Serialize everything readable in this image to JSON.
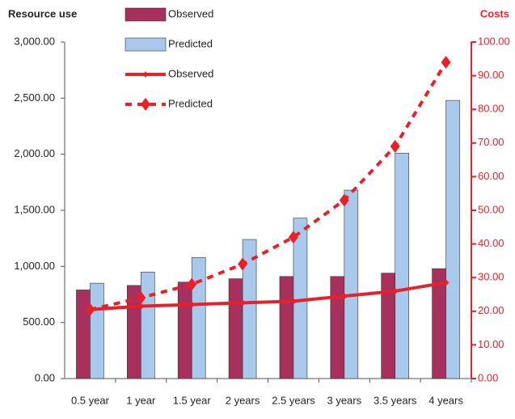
{
  "chart_data": {
    "type": "bar-line",
    "ylabel": "Resource use",
    "y2label": "Costs",
    "categories": [
      "0.5 year",
      "1 year",
      "1.5 year",
      "2 years",
      "2.5 years",
      "3 years",
      "3.5 years",
      "4 years"
    ],
    "series": [
      {
        "name": "Observed",
        "type": "bar",
        "axis": "y",
        "color": "#a8305c",
        "values": [
          790,
          830,
          860,
          890,
          910,
          910,
          940,
          980
        ]
      },
      {
        "name": "Predicted",
        "type": "bar",
        "axis": "y",
        "color": "#a9c9ec",
        "values": [
          850,
          950,
          1080,
          1240,
          1430,
          1680,
          2010,
          2480
        ]
      },
      {
        "name": "Observed",
        "type": "line",
        "axis": "y2",
        "color": "#e8202a",
        "style": "solid",
        "marker": "cross",
        "values": [
          20.5,
          21.5,
          22,
          22.5,
          23,
          24.5,
          26,
          28.5
        ]
      },
      {
        "name": "Predicted",
        "type": "line",
        "axis": "y2",
        "color": "#e8202a",
        "style": "dashed",
        "marker": "diamond",
        "values": [
          20.5,
          24,
          28,
          34,
          42,
          53,
          69,
          94
        ]
      }
    ],
    "ylim": [
      0,
      3000
    ],
    "yticks": [
      {
        "value": 0,
        "label": "0.00"
      },
      {
        "value": 500,
        "label": "500.00"
      },
      {
        "value": 1000,
        "label": "1,000.00"
      },
      {
        "value": 1500,
        "label": "1,500.00"
      },
      {
        "value": 2000,
        "label": "2,000.00"
      },
      {
        "value": 2500,
        "label": "2,500.00"
      },
      {
        "value": 3000,
        "label": "3,000.00"
      }
    ],
    "y2lim": [
      0,
      100
    ],
    "y2ticks": [
      {
        "value": 0,
        "label": "0.00"
      },
      {
        "value": 10,
        "label": "10.00"
      },
      {
        "value": 20,
        "label": "20.00"
      },
      {
        "value": 30,
        "label": "30.00"
      },
      {
        "value": 40,
        "label": "40.00"
      },
      {
        "value": 50,
        "label": "50.00"
      },
      {
        "value": 60,
        "label": "60.00"
      },
      {
        "value": 70,
        "label": "70.00"
      },
      {
        "value": 80,
        "label": "80.00"
      },
      {
        "value": 90,
        "label": "90.00"
      },
      {
        "value": 100,
        "label": "100.00"
      }
    ],
    "y2color": "#e8202a",
    "grid": false
  }
}
